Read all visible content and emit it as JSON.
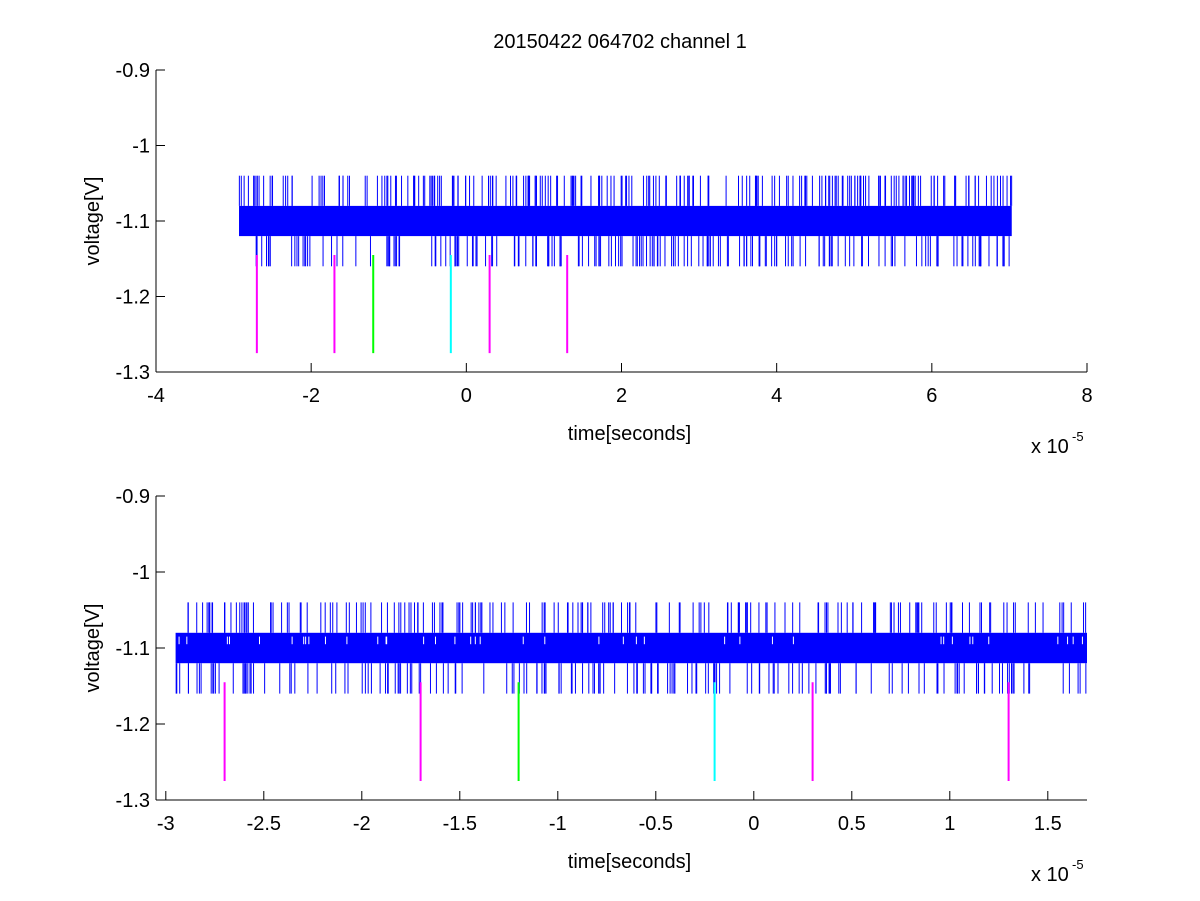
{
  "figure": {
    "title": "20150422 064702 channel 1"
  },
  "chart_data": [
    {
      "type": "line",
      "xlabel": "time[seconds]",
      "ylabel": "voltage[V]",
      "x_exponent_label": "x 10",
      "x_exponent_power": "-5",
      "xlim": [
        -4,
        8
      ],
      "ylim": [
        -1.3,
        -0.9
      ],
      "y_reversed": true,
      "x_ticks": [
        -4,
        -2,
        0,
        2,
        4,
        6,
        8
      ],
      "x_tick_labels": [
        "-4",
        "-2",
        "0",
        "2",
        "4",
        "6",
        "8"
      ],
      "y_ticks": [
        -1.3,
        -1.2,
        -1.1,
        -1.0,
        -0.9
      ],
      "y_tick_labels": [
        "-1.3",
        "-1.2",
        "-1.1",
        "-1",
        "-0.9"
      ],
      "grid": false,
      "box": "left-bottom",
      "signal": {
        "color": "#0000ff",
        "x_range": [
          -2.93,
          7.03
        ],
        "band": [
          -1.12,
          -1.08
        ],
        "spike_levels": [
          -1.16,
          -1.12,
          -1.08,
          -1.04
        ],
        "seed": 11,
        "spike_count": 420
      },
      "markers": [
        {
          "x": -2.7,
          "color": "#ff00ff",
          "y_range": [
            -1.275,
            -1.145
          ]
        },
        {
          "x": -1.7,
          "color": "#ff00ff",
          "y_range": [
            -1.275,
            -1.145
          ]
        },
        {
          "x": -1.2,
          "color": "#00ff00",
          "y_range": [
            -1.275,
            -1.145
          ]
        },
        {
          "x": -0.2,
          "color": "#00ffff",
          "y_range": [
            -1.275,
            -1.145
          ]
        },
        {
          "x": 0.3,
          "color": "#ff00ff",
          "y_range": [
            -1.275,
            -1.145
          ]
        },
        {
          "x": 1.3,
          "color": "#ff00ff",
          "y_range": [
            -1.275,
            -1.145
          ]
        }
      ]
    },
    {
      "type": "line",
      "xlabel": "time[seconds]",
      "ylabel": "voltage[V]",
      "x_exponent_label": "x 10",
      "x_exponent_power": "-5",
      "xlim": [
        -3.05,
        1.7
      ],
      "ylim": [
        -1.3,
        -0.9
      ],
      "y_reversed": true,
      "x_ticks": [
        -3,
        -2.5,
        -2,
        -1.5,
        -1,
        -0.5,
        0,
        0.5,
        1,
        1.5
      ],
      "x_tick_labels": [
        "-3",
        "-2.5",
        "-2",
        "-1.5",
        "-1",
        "-0.5",
        "0",
        "0.5",
        "1",
        "1.5"
      ],
      "y_ticks": [
        -1.3,
        -1.2,
        -1.1,
        -1.0,
        -0.9
      ],
      "y_tick_labels": [
        "-1.3",
        "-1.2",
        "-1.1",
        "-1",
        "-0.9"
      ],
      "grid": false,
      "box": "left-bottom",
      "signal": {
        "color": "#0000ff",
        "x_range": [
          -2.95,
          1.7
        ],
        "band": [
          -1.12,
          -1.08
        ],
        "spike_levels": [
          -1.16,
          -1.12,
          -1.08,
          -1.04
        ],
        "seed": 23,
        "spike_count": 360
      },
      "markers": [
        {
          "x": -2.7,
          "color": "#ff00ff",
          "y_range": [
            -1.275,
            -1.145
          ]
        },
        {
          "x": -1.7,
          "color": "#ff00ff",
          "y_range": [
            -1.275,
            -1.145
          ]
        },
        {
          "x": -1.2,
          "color": "#00ff00",
          "y_range": [
            -1.275,
            -1.145
          ]
        },
        {
          "x": -0.2,
          "color": "#00ffff",
          "y_range": [
            -1.275,
            -1.145
          ]
        },
        {
          "x": 0.3,
          "color": "#ff00ff",
          "y_range": [
            -1.275,
            -1.145
          ]
        },
        {
          "x": 1.3,
          "color": "#ff00ff",
          "y_range": [
            -1.275,
            -1.145
          ]
        }
      ]
    }
  ]
}
